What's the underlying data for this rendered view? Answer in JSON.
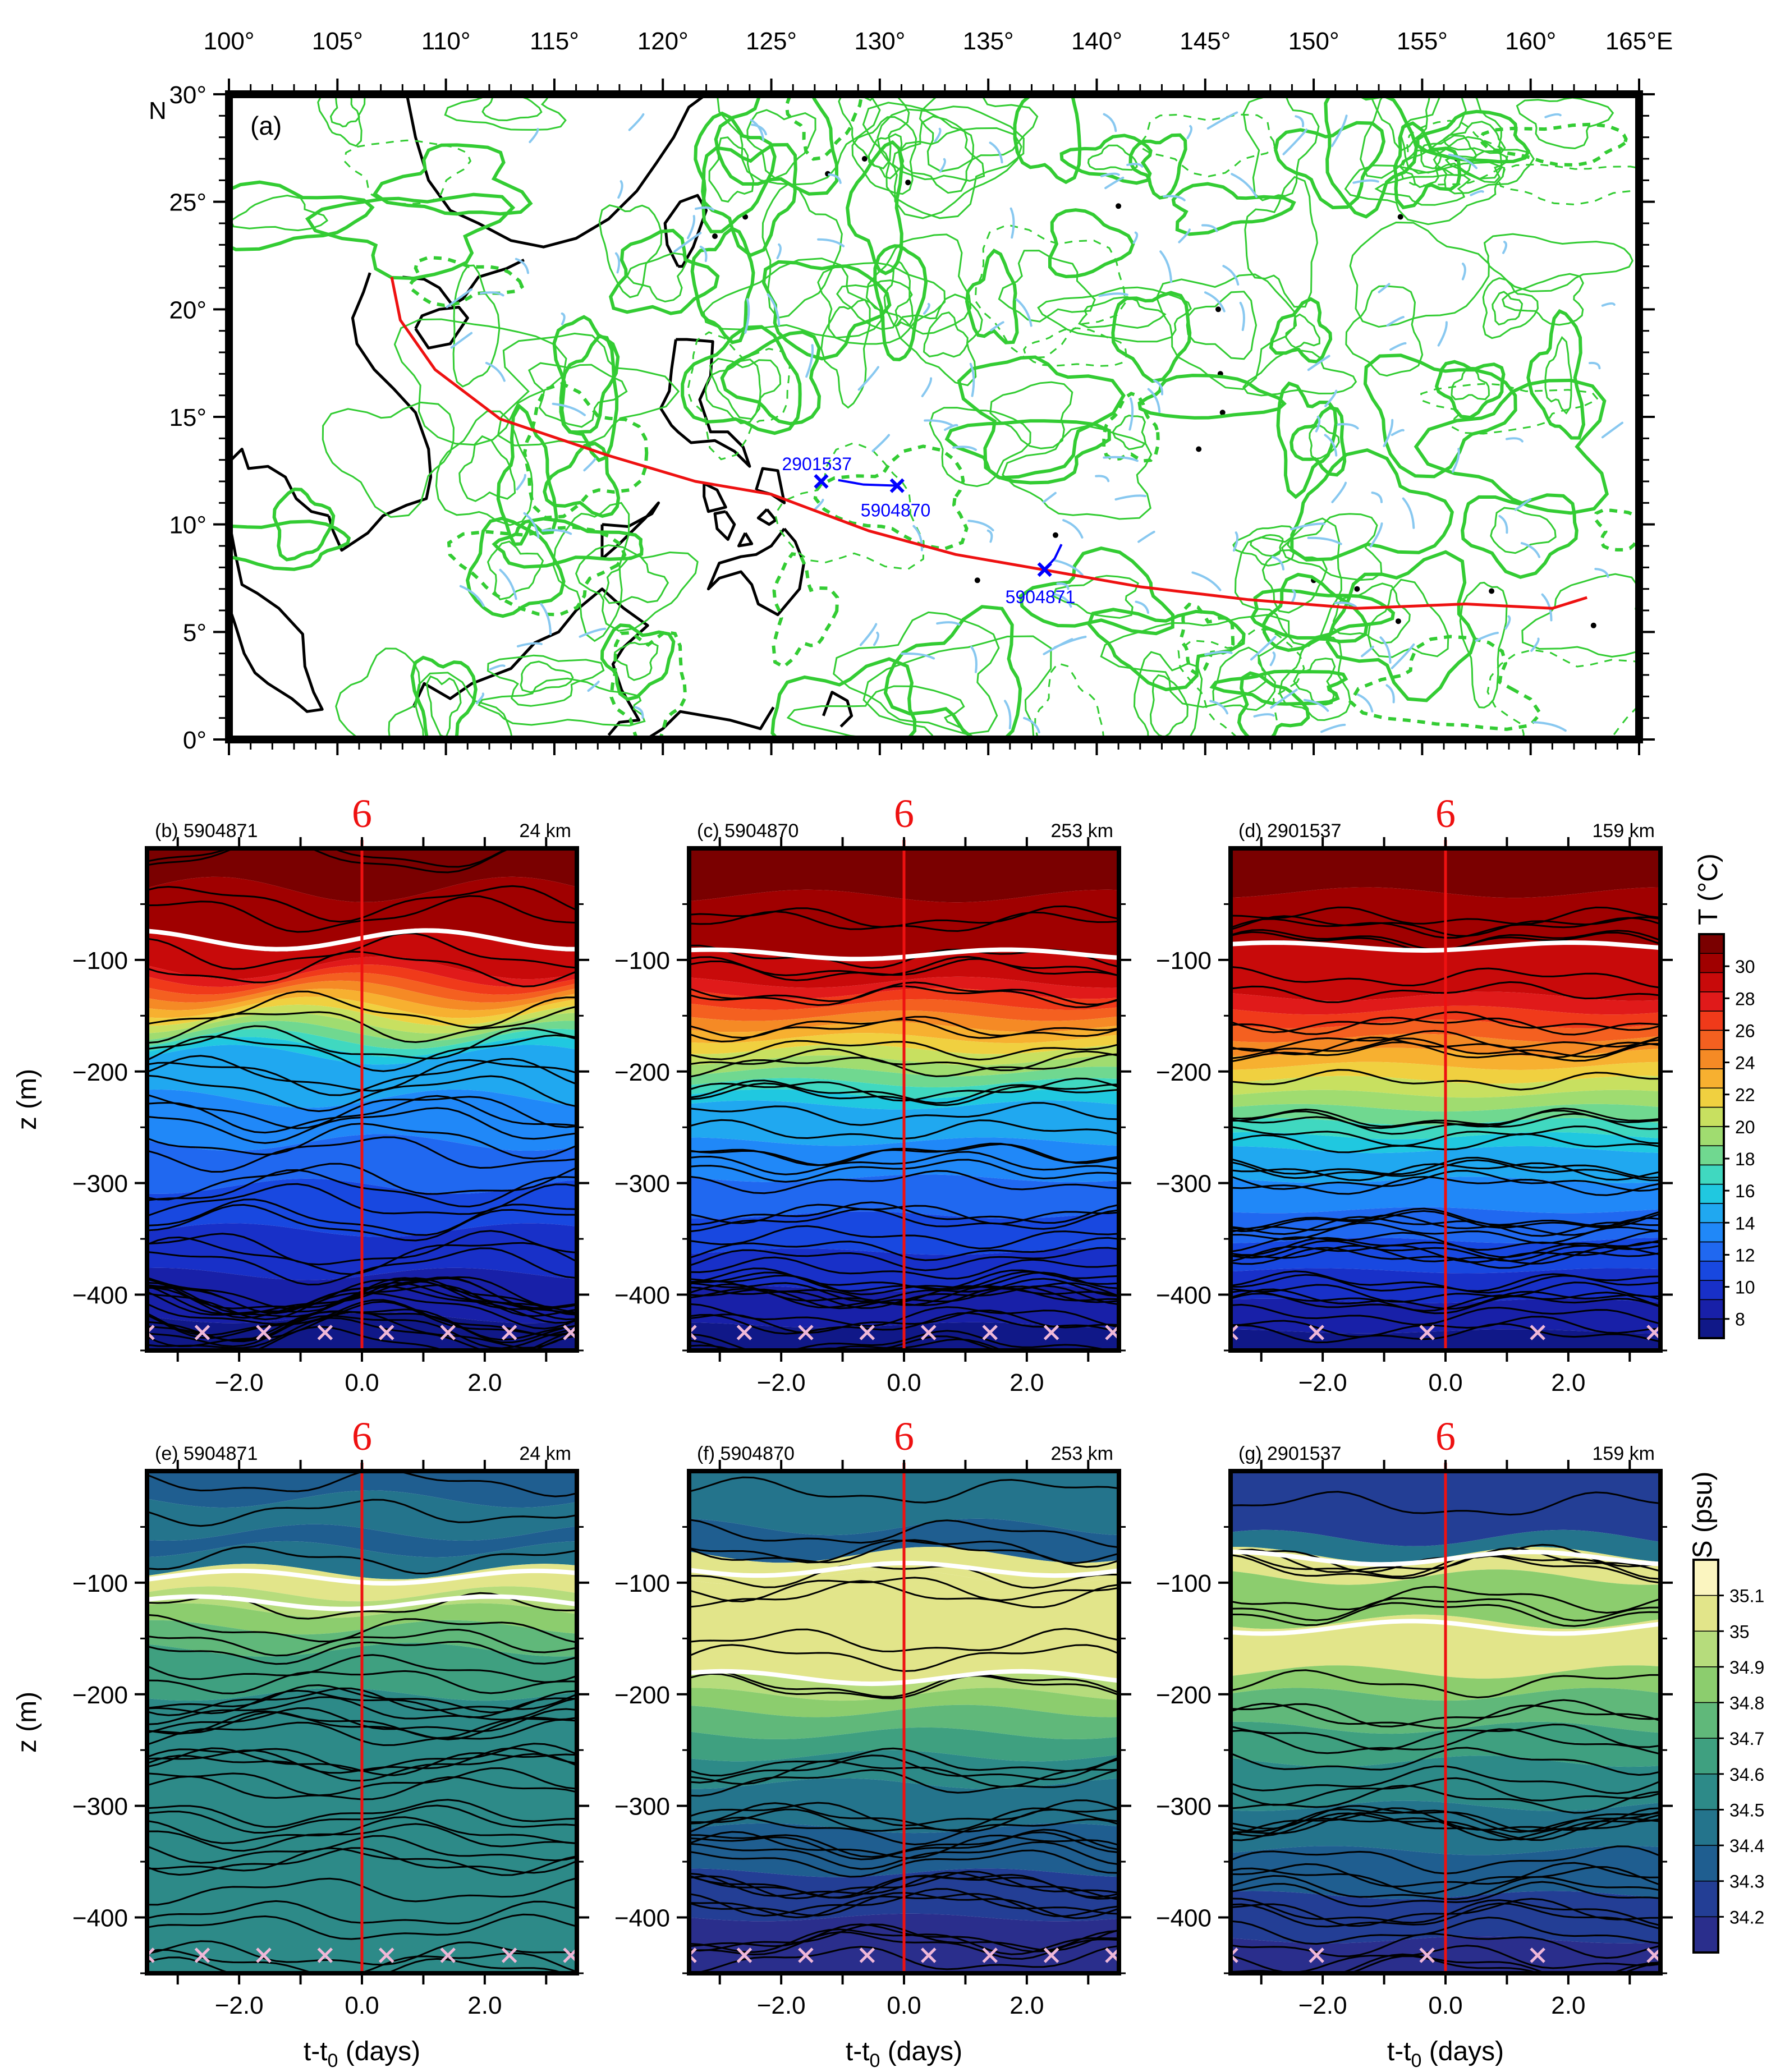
{
  "colors": {
    "land": "#000000",
    "green": "#33cc33",
    "lightblue": "#88c8f0",
    "track": "#ee1111",
    "float": "#0000ff",
    "isoline_white": "#ffffff",
    "marker": "#f0b8d8"
  },
  "chart_data": [
    {
      "panel": "a",
      "type": "map",
      "panel_label": "(a)",
      "lon_ticks": [
        "100°",
        "105°",
        "110°",
        "115°",
        "120°",
        "125°",
        "130°",
        "135°",
        "140°",
        "145°",
        "150°",
        "155°",
        "160°",
        "165°E"
      ],
      "lat_ticks": [
        "30°",
        "25°",
        "20°",
        "15°",
        "10°",
        "5°",
        "0°"
      ],
      "lat_hemisphere": "N",
      "lon_range": [
        100,
        165
      ],
      "lat_range": [
        0,
        30
      ],
      "typhoon_track": [
        [
          107.5,
          21.5
        ],
        [
          107.9,
          19.5
        ],
        [
          109.5,
          17.2
        ],
        [
          112.5,
          14.9
        ],
        [
          117.5,
          13.2
        ],
        [
          121.5,
          12.0
        ],
        [
          125.0,
          11.4
        ],
        [
          129.5,
          9.7
        ],
        [
          133.5,
          8.6
        ],
        [
          137.5,
          7.9
        ],
        [
          142.0,
          7.1
        ],
        [
          147.0,
          6.5
        ],
        [
          152.0,
          6.1
        ],
        [
          157.0,
          6.3
        ],
        [
          161.0,
          6.1
        ],
        [
          162.6,
          6.6
        ]
      ],
      "floats": [
        {
          "id": "2901537",
          "lon": 127.3,
          "lat": 12.0
        },
        {
          "id": "5904870",
          "lon": 130.8,
          "lat": 11.8
        },
        {
          "id": "5904871",
          "lon": 137.6,
          "lat": 7.9
        }
      ]
    },
    {
      "panel": "b",
      "type": "contour",
      "variable": "T",
      "float_id": "5904871",
      "distance": "24 km",
      "panel_label": "(b) 5904871",
      "ylabel": "z (m)",
      "xlabel": "",
      "yticks": [
        "−100",
        "−200",
        "−300",
        "−400"
      ],
      "xticks": [
        "−2.0",
        "0.0",
        "2.0"
      ],
      "xlim": [
        -3.5,
        3.5
      ],
      "ylim": [
        -450,
        0
      ],
      "profile_times": [
        -3.5,
        -2.6,
        -1.6,
        -0.6,
        0.4,
        1.4,
        2.4,
        3.4
      ]
    },
    {
      "panel": "c",
      "type": "contour",
      "variable": "T",
      "float_id": "5904870",
      "distance": "253 km",
      "panel_label": "(c) 5904870",
      "ylabel": "",
      "xlabel": "",
      "yticks": [
        "−100",
        "−200",
        "−300",
        "−400"
      ],
      "xticks": [
        "−2.0",
        "0.0",
        "2.0"
      ],
      "xlim": [
        -3.5,
        3.5
      ],
      "ylim": [
        -450,
        0
      ],
      "profile_times": [
        -3.5,
        -2.6,
        -1.6,
        -0.6,
        0.4,
        1.4,
        2.4,
        3.4
      ]
    },
    {
      "panel": "d",
      "type": "contour",
      "variable": "T",
      "float_id": "2901537",
      "distance": "159 km",
      "panel_label": "(d) 2901537",
      "ylabel": "",
      "xlabel": "",
      "yticks": [
        "−100",
        "−200",
        "−300",
        "−400"
      ],
      "xticks": [
        "−2.0",
        "0.0",
        "2.0"
      ],
      "xlim": [
        -3.5,
        3.5
      ],
      "ylim": [
        -450,
        0
      ],
      "profile_times": [
        -3.5,
        -2.1,
        -0.3,
        1.5,
        3.4
      ]
    },
    {
      "panel": "e",
      "type": "contour",
      "variable": "S",
      "float_id": "5904871",
      "distance": "24 km",
      "panel_label": "(e) 5904871",
      "ylabel": "z (m)",
      "xlabel": "t-t0 (days)",
      "yticks": [
        "−100",
        "−200",
        "−300",
        "−400"
      ],
      "xticks": [
        "−2.0",
        "0.0",
        "2.0"
      ],
      "xlim": [
        -3.5,
        3.5
      ],
      "ylim": [
        -450,
        0
      ],
      "profile_times": [
        -3.5,
        -2.6,
        -1.6,
        -0.6,
        0.4,
        1.4,
        2.4,
        3.4
      ]
    },
    {
      "panel": "f",
      "type": "contour",
      "variable": "S",
      "float_id": "5904870",
      "distance": "253 km",
      "panel_label": "(f) 5904870",
      "ylabel": "",
      "xlabel": "t-t0 (days)",
      "yticks": [
        "−100",
        "−200",
        "−300",
        "−400"
      ],
      "xticks": [
        "−2.0",
        "0.0",
        "2.0"
      ],
      "xlim": [
        -3.5,
        3.5
      ],
      "ylim": [
        -450,
        0
      ],
      "profile_times": [
        -3.5,
        -2.6,
        -1.6,
        -0.6,
        0.4,
        1.4,
        2.4,
        3.4
      ]
    },
    {
      "panel": "g",
      "type": "contour",
      "variable": "S",
      "float_id": "2901537",
      "distance": "159 km",
      "panel_label": "(g) 2901537",
      "ylabel": "",
      "xlabel": "t-t0 (days)",
      "yticks": [
        "−100",
        "−200",
        "−300",
        "−400"
      ],
      "xticks": [
        "−2.0",
        "0.0",
        "2.0"
      ],
      "xlim": [
        -3.5,
        3.5
      ],
      "ylim": [
        -450,
        0
      ],
      "profile_times": [
        -3.5,
        -2.1,
        -0.3,
        1.5,
        3.4
      ]
    }
  ],
  "colorbars": {
    "T": {
      "title": "T (°C)",
      "labels": [
        "30",
        "28",
        "26",
        "24",
        "22",
        "20",
        "18",
        "16",
        "14",
        "12",
        "10",
        "8"
      ],
      "colors": [
        "#7a0000",
        "#a00000",
        "#c80a0a",
        "#e01a1a",
        "#f03a1a",
        "#f46020",
        "#f58a25",
        "#f7b030",
        "#f0d040",
        "#c8e060",
        "#a0dc70",
        "#70d890",
        "#40d8c0",
        "#20c8e0",
        "#20a8f0",
        "#2088f8",
        "#2068f0",
        "#1848e0",
        "#1830c8",
        "#1820a8",
        "#101888"
      ]
    },
    "S": {
      "title": "S (psu)",
      "labels": [
        "35.1",
        "35",
        "34.9",
        "34.8",
        "34.7",
        "34.6",
        "34.5",
        "34.4",
        "34.3",
        "34.2"
      ],
      "colors": [
        "#fbf5c0",
        "#e2e58a",
        "#b6dc7c",
        "#8ccd6e",
        "#60b87a",
        "#3fa080",
        "#2d8a88",
        "#24748c",
        "#1f5e90",
        "#233e95",
        "#2a2e8c"
      ]
    }
  },
  "typhoon_symbol": "6"
}
